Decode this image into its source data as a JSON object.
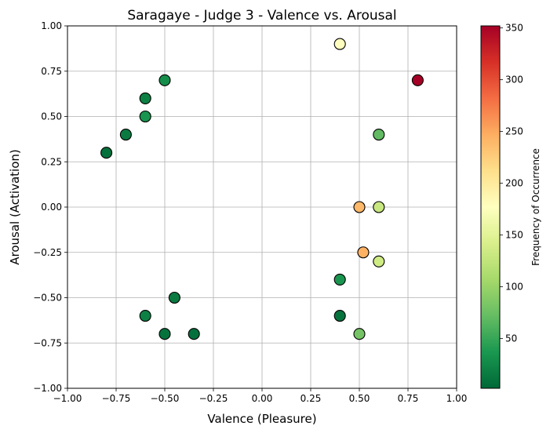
{
  "chart_data": {
    "type": "scatter",
    "title": "Saragaye - Judge 3 - Valence vs. Arousal",
    "xlabel": "Valence (Pleasure)",
    "ylabel": "Arousal (Activation)",
    "xlim": [
      -1.0,
      1.0
    ],
    "ylim": [
      -1.0,
      1.0
    ],
    "grid": true,
    "xticks": [
      -1.0,
      -0.75,
      -0.5,
      -0.25,
      0.0,
      0.25,
      0.5,
      0.75,
      1.0
    ],
    "xtick_labels": [
      "−1.00",
      "−0.75",
      "−0.50",
      "−0.25",
      "0.00",
      "0.25",
      "0.50",
      "0.75",
      "1.00"
    ],
    "yticks": [
      -1.0,
      -0.75,
      -0.5,
      -0.25,
      0.0,
      0.25,
      0.5,
      0.75,
      1.0
    ],
    "ytick_labels": [
      "−1.00",
      "−0.75",
      "−0.50",
      "−0.25",
      "0.00",
      "0.25",
      "0.50",
      "0.75",
      "1.00"
    ],
    "colorbar": {
      "label": "Frequency of Occurrence",
      "colormap": "RdYlGn_r",
      "range": [
        2,
        352
      ],
      "ticks": [
        50,
        100,
        150,
        200,
        250,
        300,
        350
      ],
      "tick_labels": [
        "50",
        "100",
        "150",
        "200",
        "250",
        "300",
        "350"
      ]
    },
    "points": [
      {
        "x": 0.4,
        "y": 0.9,
        "frequency": 178
      },
      {
        "x": 0.8,
        "y": 0.7,
        "frequency": 352
      },
      {
        "x": 0.6,
        "y": 0.4,
        "frequency": 70
      },
      {
        "x": 0.5,
        "y": 0.0,
        "frequency": 240
      },
      {
        "x": 0.6,
        "y": 0.0,
        "frequency": 130
      },
      {
        "x": 0.52,
        "y": -0.25,
        "frequency": 245
      },
      {
        "x": 0.6,
        "y": -0.3,
        "frequency": 135
      },
      {
        "x": 0.4,
        "y": -0.4,
        "frequency": 35
      },
      {
        "x": 0.4,
        "y": -0.6,
        "frequency": 10
      },
      {
        "x": 0.5,
        "y": -0.7,
        "frequency": 80
      },
      {
        "x": -0.5,
        "y": 0.7,
        "frequency": 30
      },
      {
        "x": -0.6,
        "y": 0.6,
        "frequency": 20
      },
      {
        "x": -0.6,
        "y": 0.5,
        "frequency": 35
      },
      {
        "x": -0.7,
        "y": 0.4,
        "frequency": 15
      },
      {
        "x": -0.8,
        "y": 0.3,
        "frequency": 8
      },
      {
        "x": -0.45,
        "y": -0.5,
        "frequency": 15
      },
      {
        "x": -0.6,
        "y": -0.6,
        "frequency": 20
      },
      {
        "x": -0.5,
        "y": -0.7,
        "frequency": 10
      },
      {
        "x": -0.35,
        "y": -0.7,
        "frequency": 8
      }
    ]
  }
}
